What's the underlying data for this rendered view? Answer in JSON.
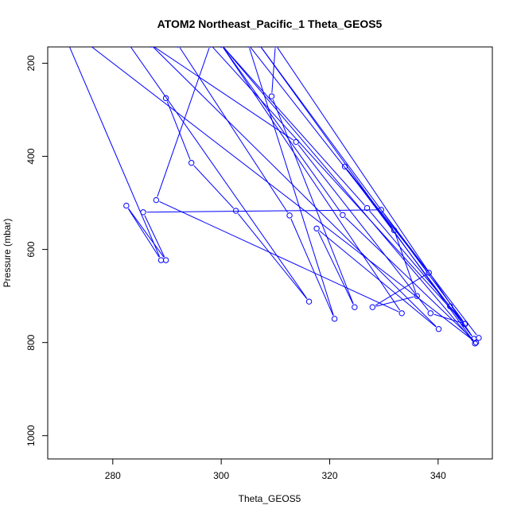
{
  "chart_data": {
    "type": "line",
    "title": "ATOM2 Northeast_Pacific_1 Theta_GEOS5",
    "xlabel": "Theta_GEOS5",
    "ylabel": "Pressure (mbar)",
    "xlim": [
      268,
      350
    ],
    "ylim": [
      1050,
      165
    ],
    "y_reversed": true,
    "x_ticks": [
      280,
      300,
      320,
      340
    ],
    "y_ticks": [
      200,
      400,
      600,
      800,
      1000
    ],
    "grid": false,
    "legend": "none",
    "color": "#0000ff",
    "series": [
      {
        "values": [
          [
            289.8,
            275
          ],
          [
            294.5,
            414
          ],
          [
            302.7,
            517
          ],
          [
            316.2,
            712
          ],
          [
            280.0,
            110
          ],
          [
            292.0,
            160
          ],
          [
            312.6,
            527
          ],
          [
            320.9,
            749
          ],
          [
            305.0,
            160
          ],
          [
            331.9,
            559
          ],
          [
            336.1,
            700
          ],
          [
            327.9,
            724
          ],
          [
            338.3,
            650
          ],
          [
            322.8,
            422
          ],
          [
            346.6,
            792
          ],
          [
            310.0,
            160
          ],
          [
            309.3,
            271
          ],
          [
            324.6,
            724
          ],
          [
            317.6,
            555
          ],
          [
            340.1,
            771
          ],
          [
            287.0,
            160
          ],
          [
            313.8,
            369
          ],
          [
            338.6,
            737
          ],
          [
            345.0,
            760
          ],
          [
            307.0,
            160
          ],
          [
            346.8,
            802
          ],
          [
            300.0,
            160
          ],
          [
            326.9,
            511
          ],
          [
            342.2,
            722
          ],
          [
            344.9,
            760
          ],
          [
            298.0,
            160
          ],
          [
            288.0,
            494
          ],
          [
            333.3,
            737
          ],
          [
            300.0,
            160
          ],
          [
            322.4,
            526
          ],
          [
            347.0,
            800
          ],
          [
            270.0,
            110
          ],
          [
            288.9,
            623
          ],
          [
            282.5,
            506
          ],
          [
            289.8,
            623
          ],
          [
            285.6,
            520
          ],
          [
            329.5,
            515
          ],
          [
            347.5,
            790
          ]
        ]
      }
    ]
  }
}
